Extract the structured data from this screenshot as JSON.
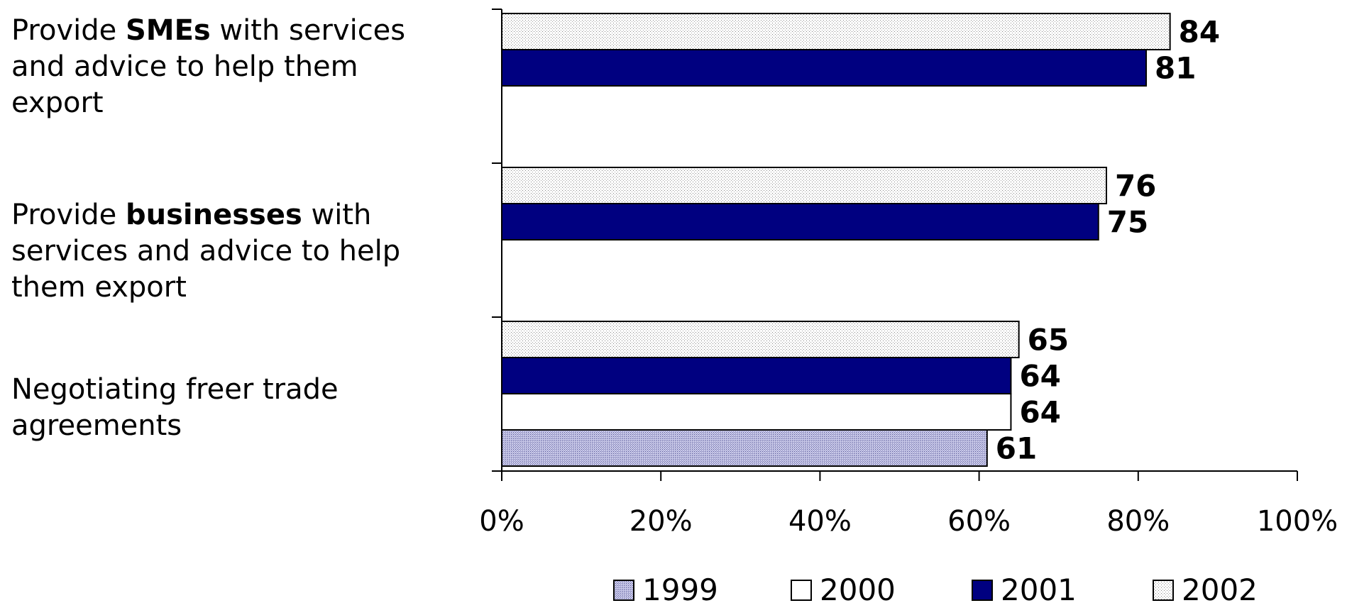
{
  "chart_data": {
    "type": "bar",
    "orientation": "horizontal",
    "categories": [
      {
        "parts": [
          {
            "text": "Provide ",
            "bold": false
          },
          {
            "text": "SMEs",
            "bold": true
          },
          {
            "text": " with services",
            "bold": false
          }
        ],
        "lines": [
          "and advice to help them",
          "export"
        ]
      },
      {
        "parts": [
          {
            "text": "Provide ",
            "bold": false
          },
          {
            "text": "businesses",
            "bold": true
          },
          {
            "text": " with",
            "bold": false
          }
        ],
        "lines": [
          "services and advice to help",
          "them export"
        ]
      },
      {
        "parts": [
          {
            "text": "Negotiating freer trade",
            "bold": false
          }
        ],
        "lines": [
          "agreements"
        ]
      }
    ],
    "series": [
      {
        "name": "1999",
        "color": "#c8c8e8",
        "pattern": "dense",
        "values": [
          null,
          null,
          61
        ]
      },
      {
        "name": "2000",
        "color": "#ffffff",
        "pattern": "none",
        "values": [
          null,
          null,
          64
        ]
      },
      {
        "name": "2001",
        "color": "#000080",
        "pattern": "none",
        "values": [
          81,
          75,
          64
        ]
      },
      {
        "name": "2002",
        "color": "#ffffff",
        "pattern": "dots",
        "values": [
          84,
          76,
          65
        ]
      }
    ],
    "xlim": [
      0,
      100
    ],
    "xticks": [
      0,
      20,
      40,
      60,
      80,
      100
    ],
    "tick_suffix": "%",
    "legend_position": "bottom",
    "grid": false
  }
}
